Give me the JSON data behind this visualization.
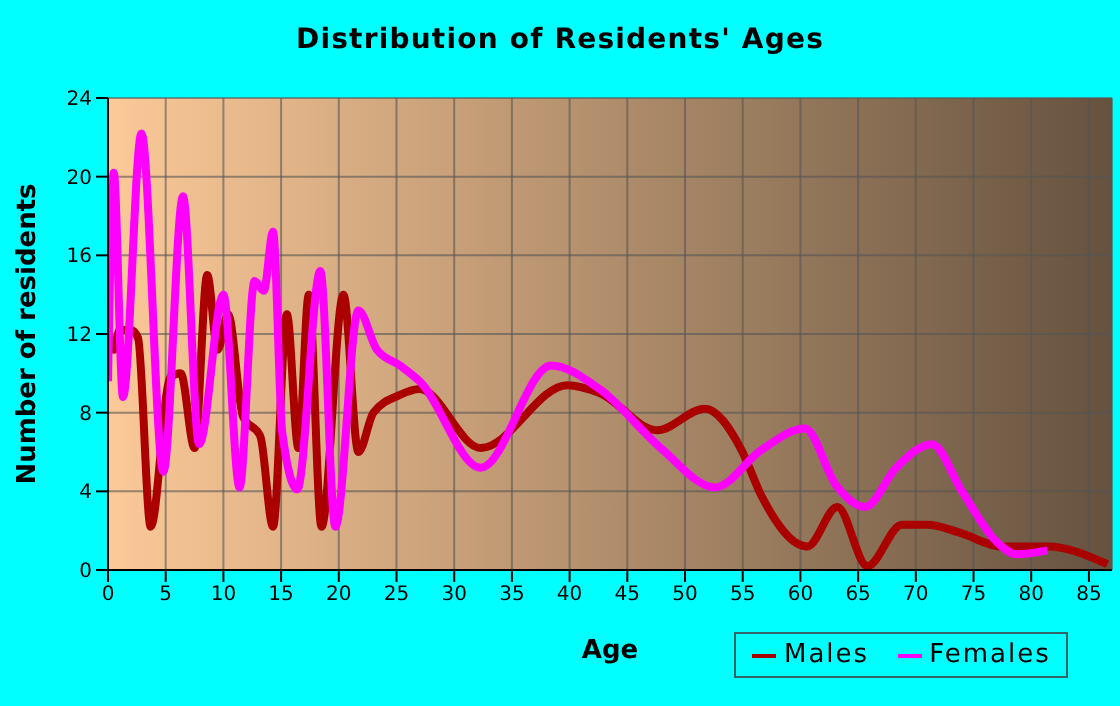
{
  "chart_data": {
    "type": "line",
    "title": "Distribution of Residents' Ages",
    "xlabel": "Age",
    "ylabel": "Number of residents",
    "xlim": [
      0,
      87
    ],
    "xticks": [
      0,
      5,
      10,
      15,
      20,
      25,
      30,
      35,
      40,
      45,
      50,
      55,
      60,
      65,
      70,
      75,
      80,
      85
    ],
    "ylim": [
      0,
      24
    ],
    "yticks": [
      0,
      4,
      8,
      12,
      16,
      20,
      24
    ],
    "grid": true,
    "legend": "bottom right",
    "marker": "none",
    "line_style": "solid",
    "series": [
      {
        "name": "Males",
        "color": "#aa0000",
        "x": [
          0,
          0.5,
          1,
          2,
          2.6,
          3.7,
          5.4,
          6.3,
          7.5,
          8.6,
          9.5,
          10.4,
          11.7,
          13.2,
          14.3,
          15.5,
          16.5,
          17.4,
          18.5,
          20.4,
          21.7,
          23,
          25.3,
          27,
          32.3,
          39.8,
          42.6,
          47.6,
          51.7,
          54.9,
          56.6,
          60.6,
          63.2,
          65.8,
          68.8,
          71,
          73.8,
          77.4,
          81.4,
          86.6
        ],
        "values": [
          12.2,
          11.2,
          12.2,
          12.2,
          11.8,
          2.2,
          9.8,
          10,
          6.2,
          15,
          11.2,
          13,
          7.8,
          6.8,
          2.2,
          13,
          6.2,
          14,
          2.2,
          14,
          6,
          8,
          8.9,
          9.2,
          6.2,
          9.4,
          9,
          7.1,
          8.2,
          6.1,
          3.8,
          1.2,
          3.2,
          0.2,
          2.3,
          2.3,
          1.9,
          1.2,
          1.2,
          0.3
        ]
      },
      {
        "name": "Females",
        "color": "#ff00ff",
        "x": [
          0,
          0.5,
          1.3,
          2.9,
          4.8,
          6.5,
          7.9,
          10,
          11.4,
          12.7,
          13.5,
          14.3,
          15.1,
          16.4,
          18.4,
          19.7,
          21.7,
          23.3,
          25.3,
          27,
          32.3,
          38.4,
          42.6,
          47.9,
          52.6,
          56.6,
          60.4,
          63.1,
          65.6,
          68.3,
          71.4,
          74,
          76.9,
          78.7,
          81.4
        ],
        "values": [
          9.6,
          20.2,
          8.8,
          22.2,
          5,
          19,
          6.4,
          14,
          4.2,
          14.7,
          14.2,
          17.2,
          7,
          4.1,
          15.2,
          2.2,
          13.2,
          11.2,
          10.4,
          9.6,
          5.2,
          10.4,
          9.2,
          6.2,
          4.2,
          6.1,
          7.2,
          4.3,
          3.2,
          5.2,
          6.4,
          4,
          1.5,
          0.8,
          1
        ]
      }
    ]
  }
}
